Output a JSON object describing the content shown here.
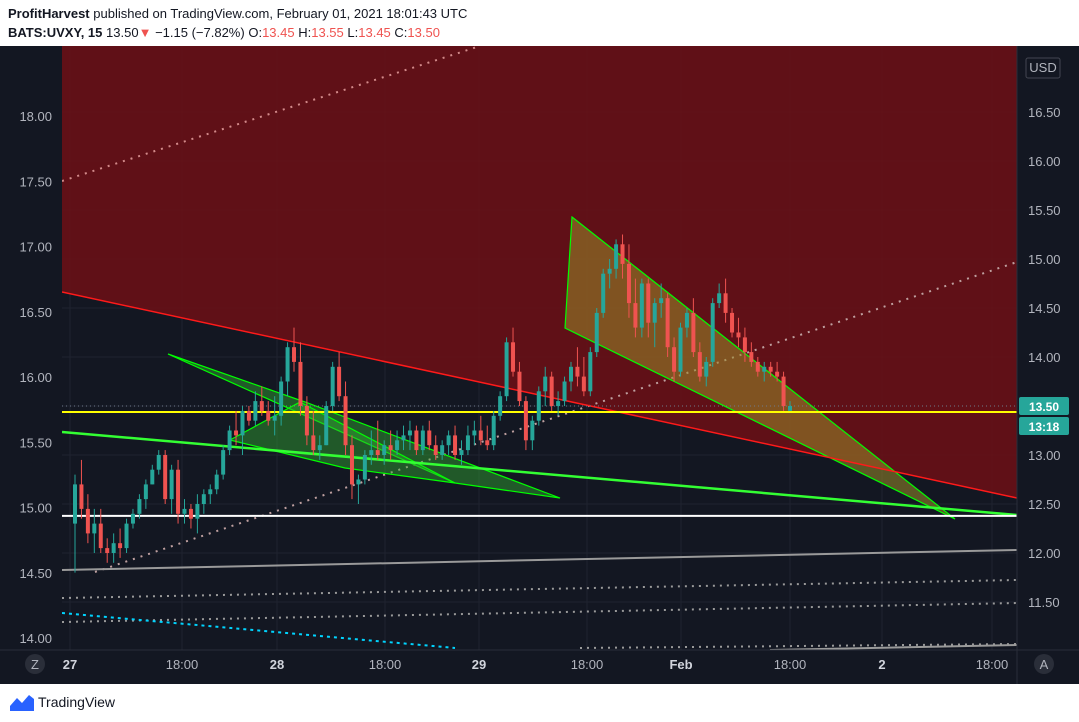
{
  "header": {
    "author": "ProfitHarvest",
    "published_text": "published on TradingView.com, February 01, 2021 18:01:43 UTC",
    "symbol": "BATS:UVXY, 15",
    "last": "13.50",
    "change": "−1.15 (−7.82%)",
    "open_label": "O:",
    "open": "13.45",
    "high_label": "H:",
    "high": "13.55",
    "low_label": "L:",
    "low": "13.45",
    "close_label": "C:",
    "close": "13.50"
  },
  "footer": {
    "brand": "TradingView"
  },
  "chart_buttons": {
    "zoom": "Z",
    "auto": "A",
    "currency": "USD"
  },
  "price_badges": {
    "last_price": "13.50",
    "countdown": "13:18"
  },
  "colors": {
    "background": "#131722",
    "resistance_zone": "#6b1016",
    "up": "#26a69a",
    "down": "#ef5350",
    "wedge": "#00ff00",
    "yellow_level": "#ffff00",
    "white_level": "#ffffff",
    "trend_red": "#ff1a1a",
    "trend_green": "#33ff33",
    "cyan_trend": "#00d4ff",
    "badge_last": "#26a69a"
  },
  "chart_data": {
    "type": "candlestick",
    "right_axis_ticks": [
      "16.50",
      "16.00",
      "15.50",
      "15.00",
      "14.50",
      "14.00",
      "13.50",
      "13.00",
      "12.50",
      "12.00",
      "11.50"
    ],
    "left_axis_ticks": [
      "18.00",
      "17.50",
      "17.00",
      "16.50",
      "16.00",
      "15.50",
      "15.00",
      "14.50",
      "14.00"
    ],
    "x_tick_labels": [
      "27",
      "18:00",
      "28",
      "18:00",
      "29",
      "18:00",
      "Feb",
      "18:00",
      "2",
      "18:00"
    ],
    "levels": [
      13.5,
      12.44
    ],
    "ohlc": [
      [
        12.3,
        12.8,
        11.8,
        12.7
      ],
      [
        12.7,
        12.95,
        12.35,
        12.45
      ],
      [
        12.45,
        12.6,
        12.1,
        12.2
      ],
      [
        12.2,
        12.45,
        12.0,
        12.3
      ],
      [
        12.3,
        12.45,
        12.0,
        12.05
      ],
      [
        12.05,
        12.15,
        11.9,
        12.0
      ],
      [
        12.0,
        12.2,
        11.9,
        12.1
      ],
      [
        12.1,
        12.25,
        11.95,
        12.05
      ],
      [
        12.05,
        12.35,
        12.0,
        12.3
      ],
      [
        12.3,
        12.45,
        12.25,
        12.4
      ],
      [
        12.4,
        12.6,
        12.35,
        12.55
      ],
      [
        12.55,
        12.75,
        12.45,
        12.7
      ],
      [
        12.7,
        12.9,
        12.7,
        12.85
      ],
      [
        12.85,
        13.05,
        12.8,
        13.0
      ],
      [
        13.0,
        13.05,
        12.5,
        12.55
      ],
      [
        12.55,
        12.9,
        12.4,
        12.85
      ],
      [
        12.85,
        12.95,
        12.3,
        12.4
      ],
      [
        12.4,
        12.55,
        12.3,
        12.45
      ],
      [
        12.45,
        12.5,
        12.25,
        12.35
      ],
      [
        12.35,
        12.6,
        12.2,
        12.5
      ],
      [
        12.5,
        12.65,
        12.4,
        12.6
      ],
      [
        12.6,
        12.7,
        12.5,
        12.65
      ],
      [
        12.65,
        12.85,
        12.6,
        12.8
      ],
      [
        12.8,
        13.1,
        12.75,
        13.05
      ],
      [
        13.05,
        13.3,
        13.0,
        13.25
      ],
      [
        13.25,
        13.45,
        13.1,
        13.2
      ],
      [
        13.2,
        13.5,
        13.0,
        13.45
      ],
      [
        13.45,
        13.5,
        13.3,
        13.35
      ],
      [
        13.35,
        13.65,
        13.3,
        13.55
      ],
      [
        13.55,
        13.7,
        13.4,
        13.45
      ],
      [
        13.45,
        13.55,
        13.3,
        13.35
      ],
      [
        13.35,
        13.6,
        13.2,
        13.4
      ],
      [
        13.4,
        13.8,
        13.3,
        13.75
      ],
      [
        13.75,
        14.15,
        13.6,
        14.1
      ],
      [
        14.1,
        14.3,
        13.85,
        13.95
      ],
      [
        13.95,
        14.15,
        13.4,
        13.5
      ],
      [
        13.5,
        13.6,
        13.1,
        13.2
      ],
      [
        13.2,
        13.45,
        13.0,
        13.05
      ],
      [
        13.05,
        13.2,
        12.95,
        13.1
      ],
      [
        13.1,
        13.55,
        13.1,
        13.5
      ],
      [
        13.5,
        13.95,
        13.45,
        13.9
      ],
      [
        13.9,
        14.05,
        13.55,
        13.6
      ],
      [
        13.6,
        13.75,
        13.0,
        13.1
      ],
      [
        13.1,
        13.2,
        12.55,
        12.7
      ],
      [
        12.7,
        12.8,
        12.5,
        12.75
      ],
      [
        12.75,
        13.05,
        12.7,
        13.0
      ],
      [
        13.0,
        13.25,
        12.9,
        13.05
      ],
      [
        13.05,
        13.35,
        12.95,
        13.0
      ],
      [
        13.0,
        13.15,
        12.9,
        13.1
      ],
      [
        13.1,
        13.25,
        12.95,
        13.05
      ],
      [
        13.05,
        13.25,
        13.0,
        13.15
      ],
      [
        13.15,
        13.3,
        13.05,
        13.2
      ],
      [
        13.2,
        13.35,
        13.05,
        13.25
      ],
      [
        13.25,
        13.3,
        13.0,
        13.05
      ],
      [
        13.05,
        13.3,
        13.0,
        13.25
      ],
      [
        13.25,
        13.35,
        13.05,
        13.1
      ],
      [
        13.1,
        13.2,
        12.95,
        13.0
      ],
      [
        13.0,
        13.15,
        12.95,
        13.1
      ],
      [
        13.1,
        13.25,
        13.0,
        13.2
      ],
      [
        13.2,
        13.3,
        12.95,
        13.0
      ],
      [
        13.0,
        13.15,
        12.9,
        13.05
      ],
      [
        13.05,
        13.3,
        13.0,
        13.2
      ],
      [
        13.2,
        13.35,
        13.1,
        13.25
      ],
      [
        13.25,
        13.4,
        13.1,
        13.15
      ],
      [
        13.15,
        13.3,
        13.05,
        13.1
      ],
      [
        13.1,
        13.45,
        13.05,
        13.4
      ],
      [
        13.4,
        13.65,
        13.35,
        13.6
      ],
      [
        13.6,
        14.2,
        13.55,
        14.15
      ],
      [
        14.15,
        14.3,
        13.8,
        13.85
      ],
      [
        13.85,
        13.95,
        13.5,
        13.55
      ],
      [
        13.55,
        13.6,
        13.05,
        13.15
      ],
      [
        13.15,
        13.4,
        13.05,
        13.35
      ],
      [
        13.35,
        13.7,
        13.3,
        13.65
      ],
      [
        13.65,
        13.9,
        13.5,
        13.8
      ],
      [
        13.8,
        13.85,
        13.45,
        13.5
      ],
      [
        13.5,
        13.65,
        13.4,
        13.55
      ],
      [
        13.55,
        13.8,
        13.5,
        13.75
      ],
      [
        13.75,
        13.95,
        13.65,
        13.9
      ],
      [
        13.9,
        14.1,
        13.7,
        13.8
      ],
      [
        13.8,
        14.0,
        13.6,
        13.65
      ],
      [
        13.65,
        14.1,
        13.6,
        14.05
      ],
      [
        14.05,
        14.5,
        14.0,
        14.45
      ],
      [
        14.45,
        14.9,
        14.4,
        14.85
      ],
      [
        14.85,
        15.0,
        14.7,
        14.9
      ],
      [
        14.9,
        15.2,
        14.8,
        15.15
      ],
      [
        15.15,
        15.25,
        14.8,
        14.95
      ],
      [
        14.95,
        15.15,
        14.4,
        14.55
      ],
      [
        14.55,
        14.8,
        14.2,
        14.3
      ],
      [
        14.3,
        14.8,
        14.2,
        14.75
      ],
      [
        14.75,
        14.8,
        14.2,
        14.35
      ],
      [
        14.35,
        14.6,
        14.1,
        14.55
      ],
      [
        14.55,
        14.75,
        14.4,
        14.6
      ],
      [
        14.6,
        14.65,
        14.0,
        14.1
      ],
      [
        14.1,
        14.2,
        13.75,
        13.85
      ],
      [
        13.85,
        14.35,
        13.8,
        14.3
      ],
      [
        14.3,
        14.5,
        14.2,
        14.45
      ],
      [
        14.45,
        14.6,
        14.0,
        14.05
      ],
      [
        14.05,
        14.15,
        13.75,
        13.8
      ],
      [
        13.8,
        14.0,
        13.7,
        13.95
      ],
      [
        13.95,
        14.6,
        13.9,
        14.55
      ],
      [
        14.55,
        14.75,
        14.5,
        14.65
      ],
      [
        14.65,
        14.8,
        14.35,
        14.45
      ],
      [
        14.45,
        14.5,
        14.2,
        14.25
      ],
      [
        14.25,
        14.4,
        14.1,
        14.2
      ],
      [
        14.2,
        14.3,
        13.95,
        14.05
      ],
      [
        14.05,
        14.15,
        13.9,
        13.95
      ],
      [
        13.95,
        14.0,
        13.8,
        13.85
      ],
      [
        13.85,
        13.95,
        13.75,
        13.9
      ],
      [
        13.9,
        13.95,
        13.8,
        13.85
      ],
      [
        13.85,
        13.95,
        13.75,
        13.8
      ],
      [
        13.8,
        13.85,
        13.45,
        13.5
      ],
      [
        13.45,
        13.55,
        13.45,
        13.5
      ]
    ]
  }
}
